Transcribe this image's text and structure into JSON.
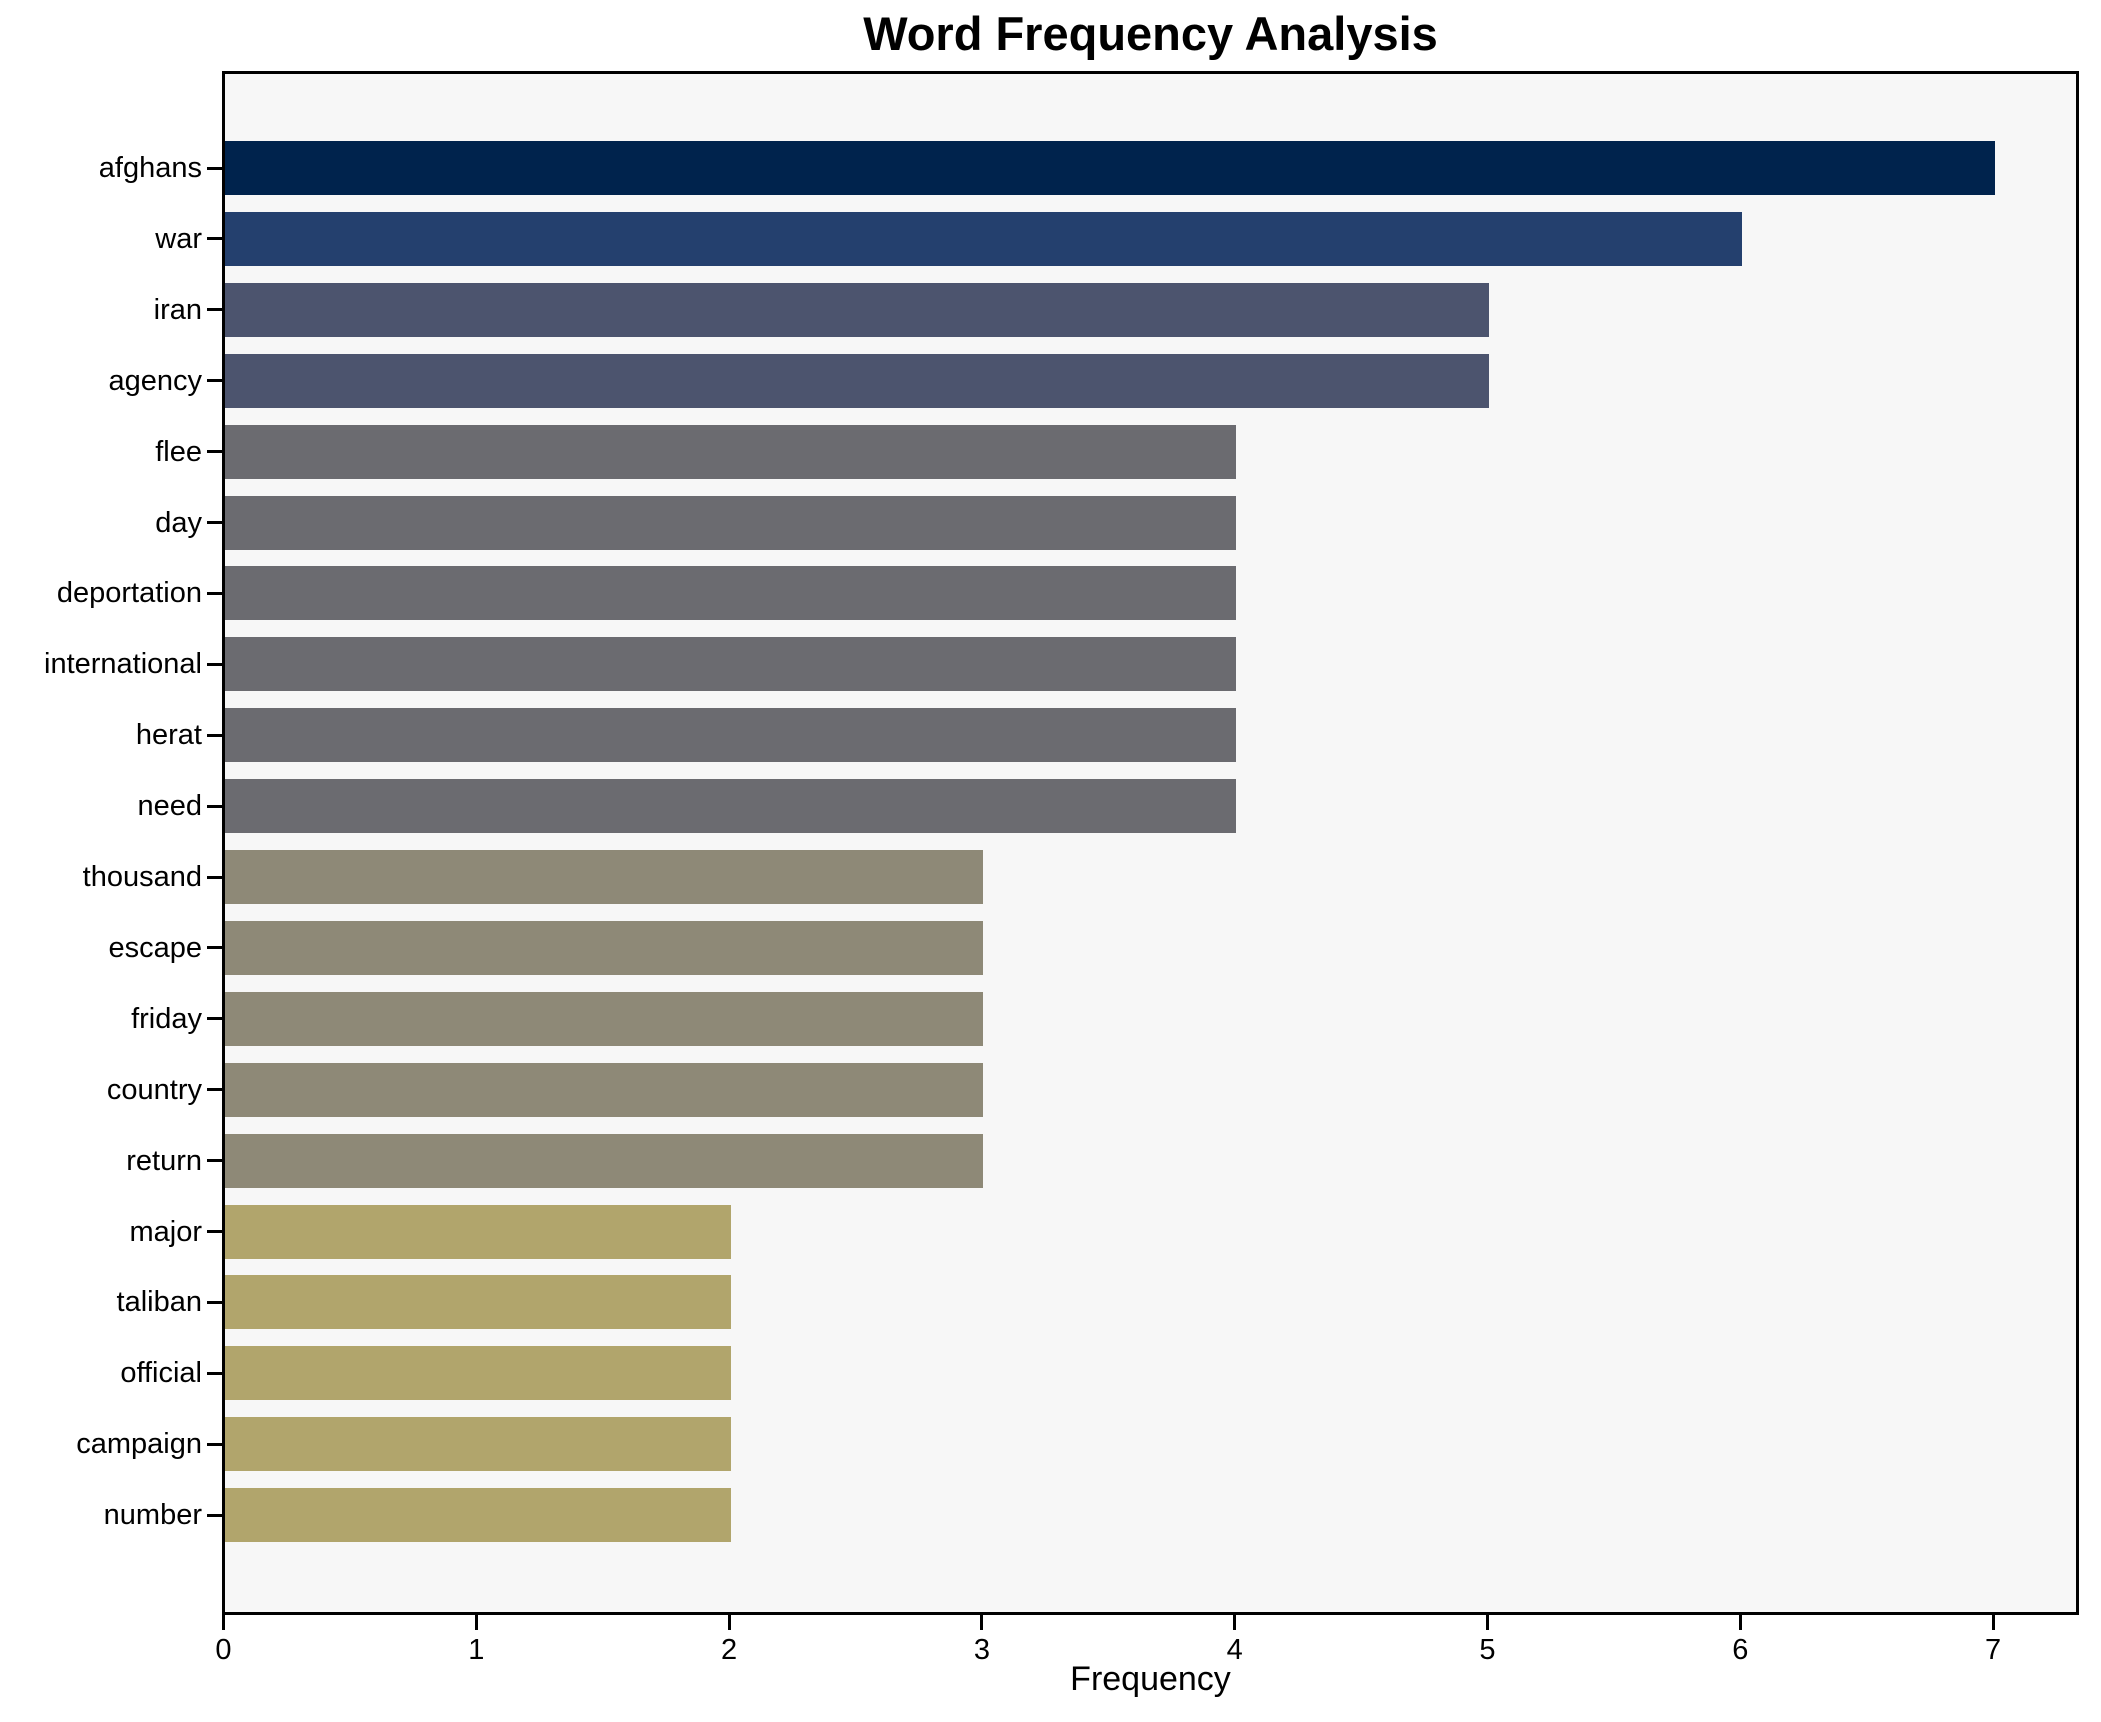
{
  "title": "Word Frequency Analysis",
  "chart_data": {
    "type": "bar",
    "orientation": "horizontal",
    "title": "Word Frequency Analysis",
    "xlabel": "Frequency",
    "ylabel": "",
    "categories": [
      "afghans",
      "war",
      "iran",
      "agency",
      "flee",
      "day",
      "deportation",
      "international",
      "herat",
      "need",
      "thousand",
      "escape",
      "friday",
      "country",
      "return",
      "major",
      "taliban",
      "official",
      "campaign",
      "number"
    ],
    "values": [
      7,
      6,
      5,
      5,
      4,
      4,
      4,
      4,
      4,
      4,
      3,
      3,
      3,
      3,
      3,
      2,
      2,
      2,
      2,
      2
    ],
    "x_ticks": [
      0,
      1,
      2,
      3,
      4,
      5,
      6,
      7
    ],
    "xlim": [
      0,
      7.32
    ],
    "grid": false,
    "legend_position": "none",
    "figure_background": "#ffffff",
    "plot_background": "#f7f7f7",
    "spine_color": "#000000",
    "text_color": "#000000",
    "value_colors": {
      "7": "#00234d",
      "6": "#24406e",
      "5": "#4c546e",
      "4": "#6b6b70",
      "3": "#8e8977",
      "2": "#b1a56c"
    }
  }
}
